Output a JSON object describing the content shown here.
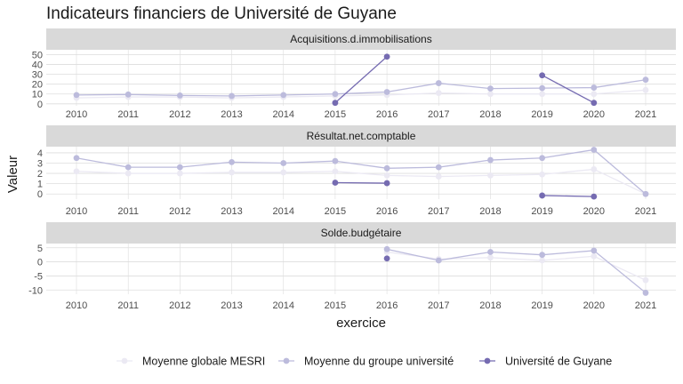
{
  "chart_data": {
    "type": "line",
    "title": "Indicateurs financiers de Université de Guyane",
    "xlabel": "exercice",
    "ylabel": "Valeur",
    "x": [
      "2010",
      "2011",
      "2012",
      "2013",
      "2014",
      "2015",
      "2016",
      "2017",
      "2018",
      "2019",
      "2020",
      "2021"
    ],
    "legend": {
      "position": "bottom"
    },
    "colors": {
      "mesri": "#ebe9f3",
      "groupe": "#bcbbdc",
      "univ": "#756bb1",
      "strip": "#d9d9d9",
      "grid": "#dddddd"
    },
    "panels": [
      {
        "name": "Acquisitions.d.immobilisations",
        "ylim": [
          -2,
          55
        ],
        "yticks": [
          0,
          10,
          20,
          30,
          40,
          50
        ],
        "series": [
          {
            "name": "Moyenne globale MESRI",
            "values": [
              6,
              7,
              7,
              6,
              7,
              8,
              9,
              11,
              10,
              10,
              10,
              14
            ]
          },
          {
            "name": "Moyenne du groupe université",
            "values": [
              9,
              9.5,
              8.5,
              8,
              9,
              10,
              12,
              21,
              15.5,
              16,
              16.5,
              24.5
            ]
          },
          {
            "name": "Université de Guyane",
            "values": [
              null,
              null,
              null,
              null,
              null,
              1,
              48,
              null,
              null,
              29,
              1,
              null
            ]
          }
        ]
      },
      {
        "name": "Résultat.net.comptable",
        "ylim": [
          -0.5,
          4.6
        ],
        "yticks": [
          0,
          1,
          2,
          3,
          4
        ],
        "series": [
          {
            "name": "Moyenne globale MESRI",
            "values": [
              2.2,
              2.0,
              2.0,
              2.1,
              2.1,
              2.2,
              1.8,
              1.7,
              1.8,
              1.9,
              2.4,
              0.0
            ]
          },
          {
            "name": "Moyenne du groupe université",
            "values": [
              3.5,
              2.6,
              2.6,
              3.1,
              3.0,
              3.2,
              2.5,
              2.6,
              3.3,
              3.5,
              4.3,
              0.0
            ]
          },
          {
            "name": "Université de Guyane",
            "values": [
              null,
              null,
              null,
              null,
              null,
              1.1,
              1.05,
              null,
              null,
              -0.15,
              -0.25,
              null
            ]
          }
        ]
      },
      {
        "name": "Solde.budgétaire",
        "ylim": [
          -11.5,
          6.5
        ],
        "yticks": [
          -10,
          -5,
          0,
          5
        ],
        "series": [
          {
            "name": "Moyenne globale MESRI",
            "values": [
              null,
              null,
              null,
              null,
              null,
              null,
              3.5,
              1.0,
              1.5,
              0.5,
              2.0,
              -6.5
            ]
          },
          {
            "name": "Moyenne du groupe université",
            "values": [
              null,
              null,
              null,
              null,
              null,
              null,
              4.5,
              0.5,
              3.5,
              2.5,
              4.0,
              -11.0
            ]
          },
          {
            "name": "Université de Guyane",
            "values": [
              null,
              null,
              null,
              null,
              null,
              null,
              1.2,
              null,
              null,
              null,
              null,
              null
            ]
          }
        ]
      }
    ]
  }
}
